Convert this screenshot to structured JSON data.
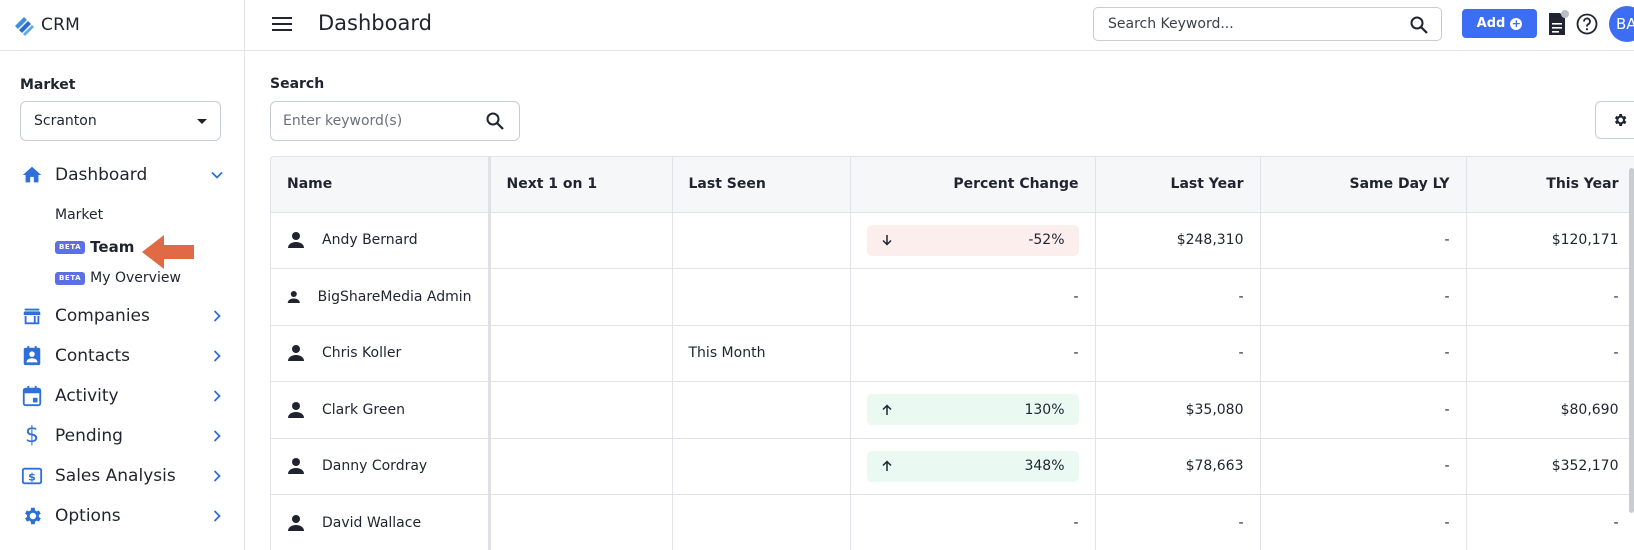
{
  "brand": {
    "name": "CRM"
  },
  "sidebar": {
    "market_label": "Market",
    "market_value": "Scranton",
    "dashboard_label": "Dashboard",
    "sub_items": [
      {
        "label": "Market",
        "beta": ""
      },
      {
        "label": "Team",
        "beta": "BETA"
      },
      {
        "label": "My Overview",
        "beta": "BETA"
      }
    ],
    "items": [
      {
        "label": "Companies",
        "icon": "store-icon"
      },
      {
        "label": "Contacts",
        "icon": "contact-card-icon"
      },
      {
        "label": "Activity",
        "icon": "calendar-icon"
      },
      {
        "label": "Pending",
        "icon": "dollar-icon"
      },
      {
        "label": "Sales Analysis",
        "icon": "sales-analysis-icon"
      },
      {
        "label": "Options",
        "icon": "gear-icon"
      }
    ]
  },
  "header": {
    "title": "Dashboard",
    "search_placeholder": "Search Keyword...",
    "add_label": "Add",
    "avatar_initials": "BA"
  },
  "main": {
    "search_label": "Search",
    "search_placeholder": "Enter keyword(s)"
  },
  "table": {
    "columns": [
      "Name",
      "Next 1 on 1",
      "Last Seen",
      "Percent Change",
      "Last Year",
      "Same Day LY",
      "This Year"
    ],
    "rows": [
      {
        "name": "Andy Bernard",
        "next": "",
        "last_seen": "",
        "pct": "-52%",
        "trend": "down",
        "last_year": "$248,310",
        "same_day_ly": "-",
        "this_year": "$120,171"
      },
      {
        "name": "BigShareMedia Admin",
        "next": "",
        "last_seen": "",
        "pct": "-",
        "trend": "none",
        "last_year": "-",
        "same_day_ly": "-",
        "this_year": "-"
      },
      {
        "name": "Chris Koller",
        "next": "",
        "last_seen": "This Month",
        "pct": "-",
        "trend": "none",
        "last_year": "-",
        "same_day_ly": "-",
        "this_year": "-"
      },
      {
        "name": "Clark Green",
        "next": "",
        "last_seen": "",
        "pct": "130%",
        "trend": "up",
        "last_year": "$35,080",
        "same_day_ly": "-",
        "this_year": "$80,690"
      },
      {
        "name": "Danny Cordray",
        "next": "",
        "last_seen": "",
        "pct": "348%",
        "trend": "up",
        "last_year": "$78,663",
        "same_day_ly": "-",
        "this_year": "$352,170"
      },
      {
        "name": "David Wallace",
        "next": "",
        "last_seen": "",
        "pct": "-",
        "trend": "none",
        "last_year": "-",
        "same_day_ly": "-",
        "this_year": "-"
      }
    ]
  },
  "colors": {
    "accent": "#3d6df2",
    "beta_badge": "#5b6fe6",
    "pointer_arrow": "#e06a45",
    "down_pill": "#fdeeee",
    "up_pill": "#eafaf2"
  }
}
